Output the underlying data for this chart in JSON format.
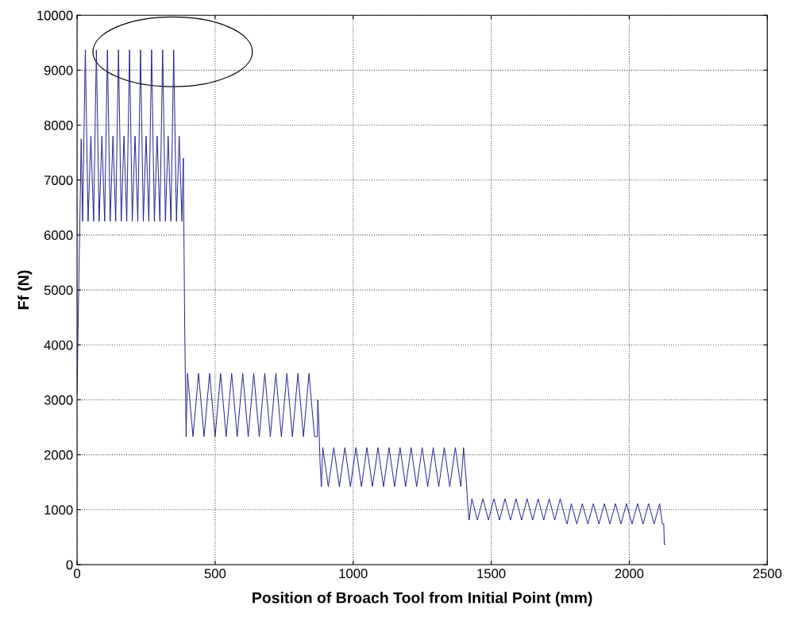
{
  "chart_data": {
    "type": "line",
    "xlabel": "Position of Broach Tool from Initial Point (mm)",
    "ylabel": "Ff (N)",
    "xlim": [
      0,
      2500
    ],
    "xticks": [
      0,
      500,
      1000,
      1500,
      2000,
      2500
    ],
    "ylim": [
      0,
      10000
    ],
    "yticks": [
      0,
      1000,
      2000,
      3000,
      4000,
      5000,
      6000,
      7000,
      8000,
      9000,
      10000
    ],
    "grid": true,
    "marker": "none",
    "line_style": "solid",
    "x": [
      0,
      5,
      10,
      15,
      20,
      30,
      40,
      50,
      60,
      70,
      80,
      90,
      100,
      110,
      120,
      130,
      140,
      150,
      160,
      170,
      180,
      190,
      200,
      210,
      220,
      230,
      240,
      250,
      260,
      270,
      280,
      290,
      300,
      310,
      320,
      330,
      340,
      350,
      360,
      370,
      380,
      385,
      388,
      390,
      395,
      400,
      420,
      440,
      460,
      480,
      500,
      520,
      540,
      560,
      580,
      600,
      620,
      640,
      660,
      680,
      700,
      720,
      740,
      760,
      780,
      800,
      820,
      840,
      860,
      870,
      872,
      876,
      880,
      885,
      890,
      910,
      930,
      950,
      970,
      990,
      1010,
      1030,
      1050,
      1070,
      1090,
      1110,
      1130,
      1150,
      1170,
      1190,
      1210,
      1230,
      1250,
      1270,
      1290,
      1310,
      1330,
      1350,
      1370,
      1390,
      1400,
      1405,
      1410,
      1415,
      1420,
      1430,
      1450,
      1470,
      1490,
      1510,
      1530,
      1550,
      1570,
      1590,
      1610,
      1630,
      1650,
      1670,
      1690,
      1710,
      1730,
      1750,
      1770,
      1775,
      1790,
      1810,
      1830,
      1850,
      1870,
      1890,
      1910,
      1930,
      1950,
      1970,
      1990,
      2010,
      2030,
      2050,
      2070,
      2090,
      2110,
      2120,
      2125,
      2127,
      2130
    ],
    "series": [
      {
        "color": "#1c1c8c",
        "values": [
          3100,
          4700,
          6200,
          7750,
          6250,
          9370,
          6250,
          7800,
          6250,
          9370,
          6250,
          7800,
          6250,
          9370,
          6250,
          7800,
          6250,
          9370,
          6250,
          7800,
          6250,
          9370,
          6250,
          7800,
          6250,
          9370,
          6250,
          7800,
          6250,
          9370,
          6250,
          7800,
          6250,
          9370,
          6250,
          7800,
          6250,
          9370,
          6250,
          7800,
          6250,
          7400,
          5450,
          4300,
          2330,
          3480,
          2330,
          3480,
          2330,
          3480,
          2330,
          3480,
          2330,
          3480,
          2330,
          3480,
          2330,
          3480,
          2330,
          3480,
          2330,
          3480,
          2330,
          3480,
          2330,
          3480,
          2330,
          3480,
          2330,
          2330,
          3000,
          2550,
          1870,
          1420,
          2130,
          1420,
          2130,
          1420,
          2130,
          1420,
          2130,
          1420,
          2130,
          1420,
          2130,
          1420,
          2130,
          1420,
          2130,
          1420,
          2130,
          1420,
          2130,
          1420,
          2130,
          1420,
          2130,
          1420,
          2130,
          1420,
          2130,
          1800,
          1500,
          1100,
          810,
          1200,
          810,
          1200,
          810,
          1200,
          810,
          1200,
          810,
          1200,
          810,
          1200,
          810,
          1200,
          810,
          1200,
          810,
          1200,
          810,
          740,
          1110,
          740,
          1110,
          740,
          1110,
          740,
          1110,
          740,
          1110,
          740,
          1110,
          740,
          1110,
          740,
          1110,
          740,
          1110,
          740,
          740,
          370,
          370
        ]
      }
    ]
  }
}
